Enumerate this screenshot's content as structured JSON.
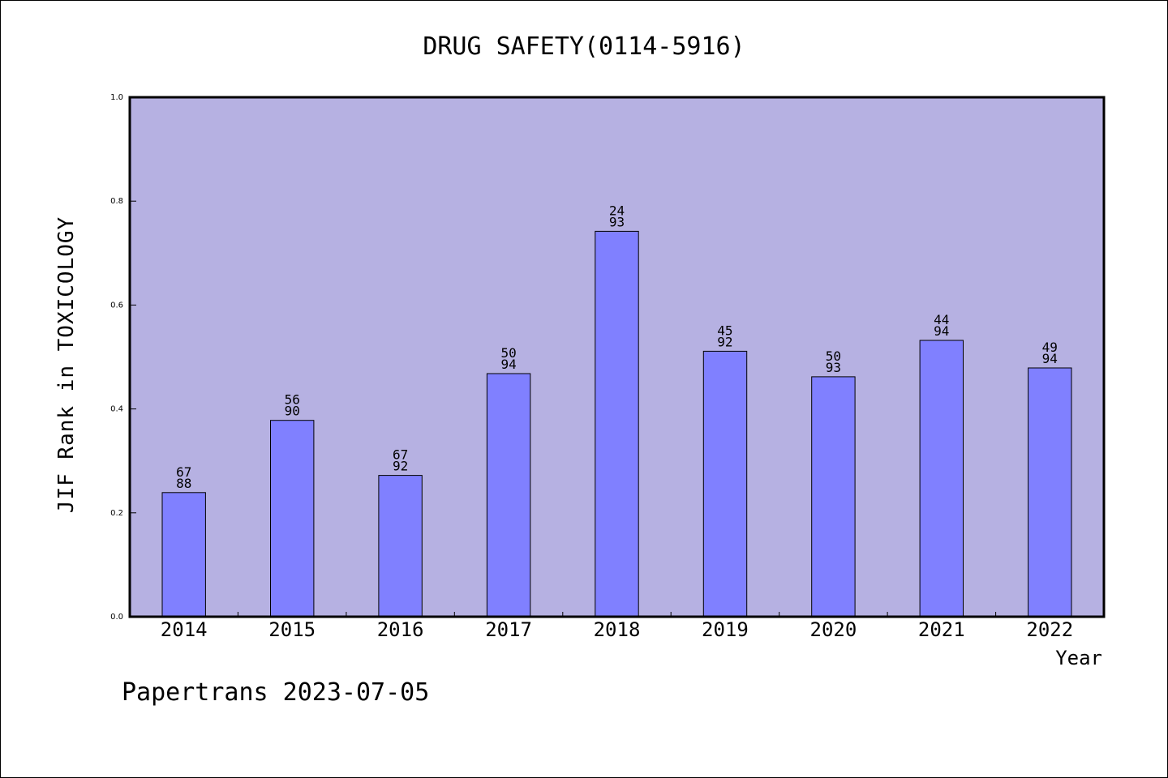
{
  "chart_data": {
    "type": "bar",
    "title": "DRUG SAFETY(0114-5916)",
    "xlabel": "Year",
    "ylabel": "JIF Rank in TOXICOLOGY",
    "categories": [
      "2014",
      "2015",
      "2016",
      "2017",
      "2018",
      "2019",
      "2020",
      "2021",
      "2022"
    ],
    "values": [
      0.239,
      0.378,
      0.272,
      0.468,
      0.742,
      0.511,
      0.462,
      0.532,
      0.479
    ],
    "ranks": [
      "67",
      "56",
      "67",
      "50",
      "24",
      "45",
      "50",
      "44",
      "49"
    ],
    "totals": [
      "88",
      "90",
      "92",
      "94",
      "93",
      "92",
      "93",
      "94",
      "94"
    ],
    "ylim": [
      0,
      1.0
    ],
    "yticks": [
      "0.0",
      "0.2",
      "0.4",
      "0.6",
      "0.8",
      "1.0"
    ],
    "grid": false,
    "colors": {
      "plot_bg": "#b6b1e2",
      "bar": "#8080ff",
      "bar_edge": "#000000"
    }
  },
  "footer": {
    "text": "Papertrans 2023-07-05"
  }
}
